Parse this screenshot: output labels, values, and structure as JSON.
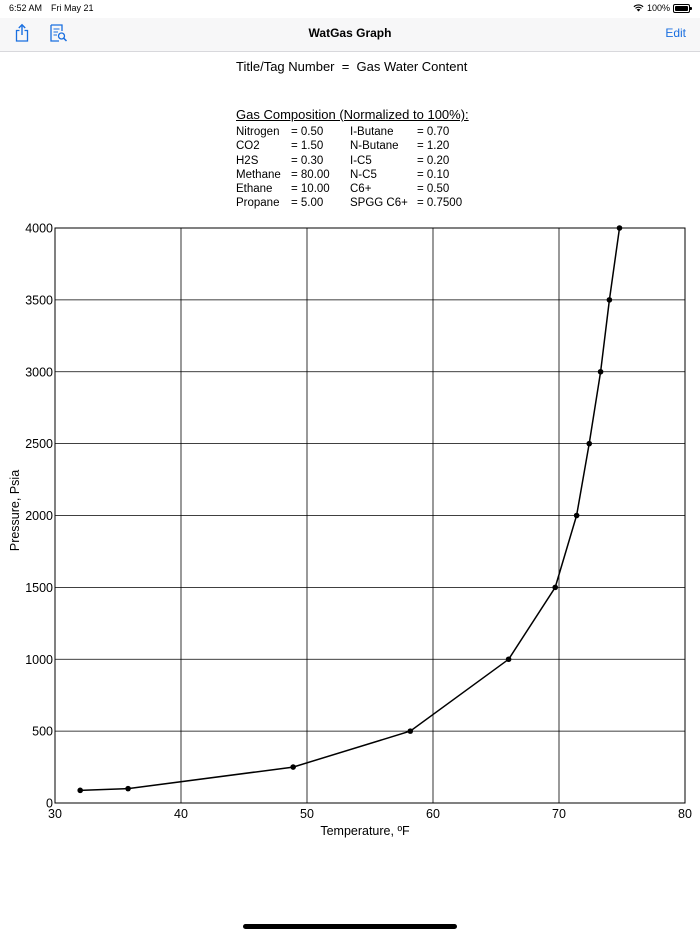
{
  "status_bar": {
    "time": "6:52 AM",
    "date": "Fri May 21",
    "battery_text": "100%",
    "icons": [
      "wifi-icon",
      "battery-icon"
    ]
  },
  "nav": {
    "title": "WatGas Graph",
    "edit_label": "Edit",
    "left_icons": [
      "share-icon",
      "report-icon"
    ],
    "accent_color": "#1a6fe0"
  },
  "document": {
    "title_tag_line": "Title/Tag Number  =  Gas Water Content",
    "composition_heading": "Gas Composition (Normalized to 100%):",
    "composition_left": [
      {
        "name": "Nitrogen",
        "value": "= 0.50"
      },
      {
        "name": "CO2",
        "value": "= 1.50"
      },
      {
        "name": "H2S",
        "value": "= 0.30"
      },
      {
        "name": "Methane",
        "value": "= 80.00"
      },
      {
        "name": "Ethane",
        "value": "= 10.00"
      },
      {
        "name": "Propane",
        "value": "= 5.00"
      }
    ],
    "composition_right": [
      {
        "name": "I-Butane",
        "value": "= 0.70"
      },
      {
        "name": "N-Butane",
        "value": "= 1.20"
      },
      {
        "name": "I-C5",
        "value": "= 0.20"
      },
      {
        "name": "N-C5",
        "value": "= 0.10"
      },
      {
        "name": "C6+",
        "value": "= 0.50"
      },
      {
        "name": "SPGG C6+",
        "value": "= 0.7500"
      }
    ]
  },
  "chart_data": {
    "type": "line",
    "title": "",
    "xlabel": "Temperature, ºF",
    "ylabel": "Pressure, Psia",
    "xlim": [
      30,
      80
    ],
    "ylim": [
      0,
      4000
    ],
    "x_ticks": [
      30,
      40,
      50,
      60,
      70,
      80
    ],
    "y_ticks": [
      0,
      500,
      1000,
      1500,
      2000,
      2500,
      3000,
      3500,
      4000
    ],
    "grid": true,
    "line_color": "#000000",
    "series": [
      {
        "points": [
          {
            "x": 32.0,
            "y": 88
          },
          {
            "x": 35.8,
            "y": 100
          },
          {
            "x": 48.9,
            "y": 250
          },
          {
            "x": 58.2,
            "y": 500
          },
          {
            "x": 66.0,
            "y": 1000
          },
          {
            "x": 69.7,
            "y": 1500
          },
          {
            "x": 71.4,
            "y": 2000
          },
          {
            "x": 72.4,
            "y": 2500
          },
          {
            "x": 73.3,
            "y": 3000
          },
          {
            "x": 74.0,
            "y": 3500
          },
          {
            "x": 74.8,
            "y": 4000
          }
        ]
      }
    ]
  }
}
